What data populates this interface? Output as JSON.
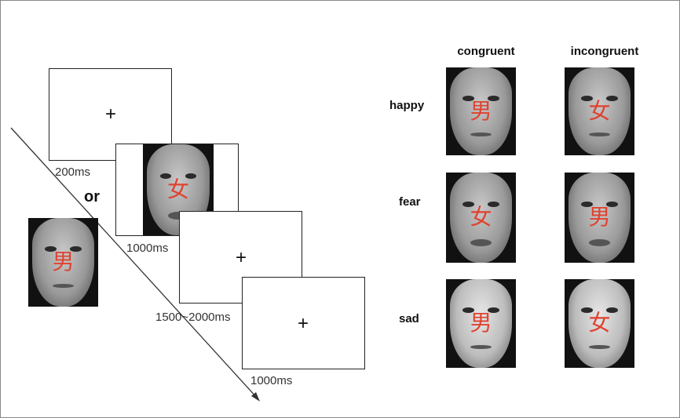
{
  "timeline": {
    "fixation": "+",
    "durations": [
      "200ms",
      "1000ms",
      "1500~2000ms",
      "1000ms"
    ],
    "or_label": "or",
    "stimulus_chars": {
      "female": "女",
      "male": "男"
    }
  },
  "examples": {
    "columns": [
      "congruent",
      "incongruent"
    ],
    "rows": [
      {
        "label": "happy",
        "chars": [
          "男",
          "女"
        ]
      },
      {
        "label": "fear",
        "chars": [
          "女",
          "男"
        ]
      },
      {
        "label": "sad",
        "chars": [
          "男",
          "女"
        ]
      }
    ]
  },
  "colors": {
    "char": "#e0412f"
  }
}
